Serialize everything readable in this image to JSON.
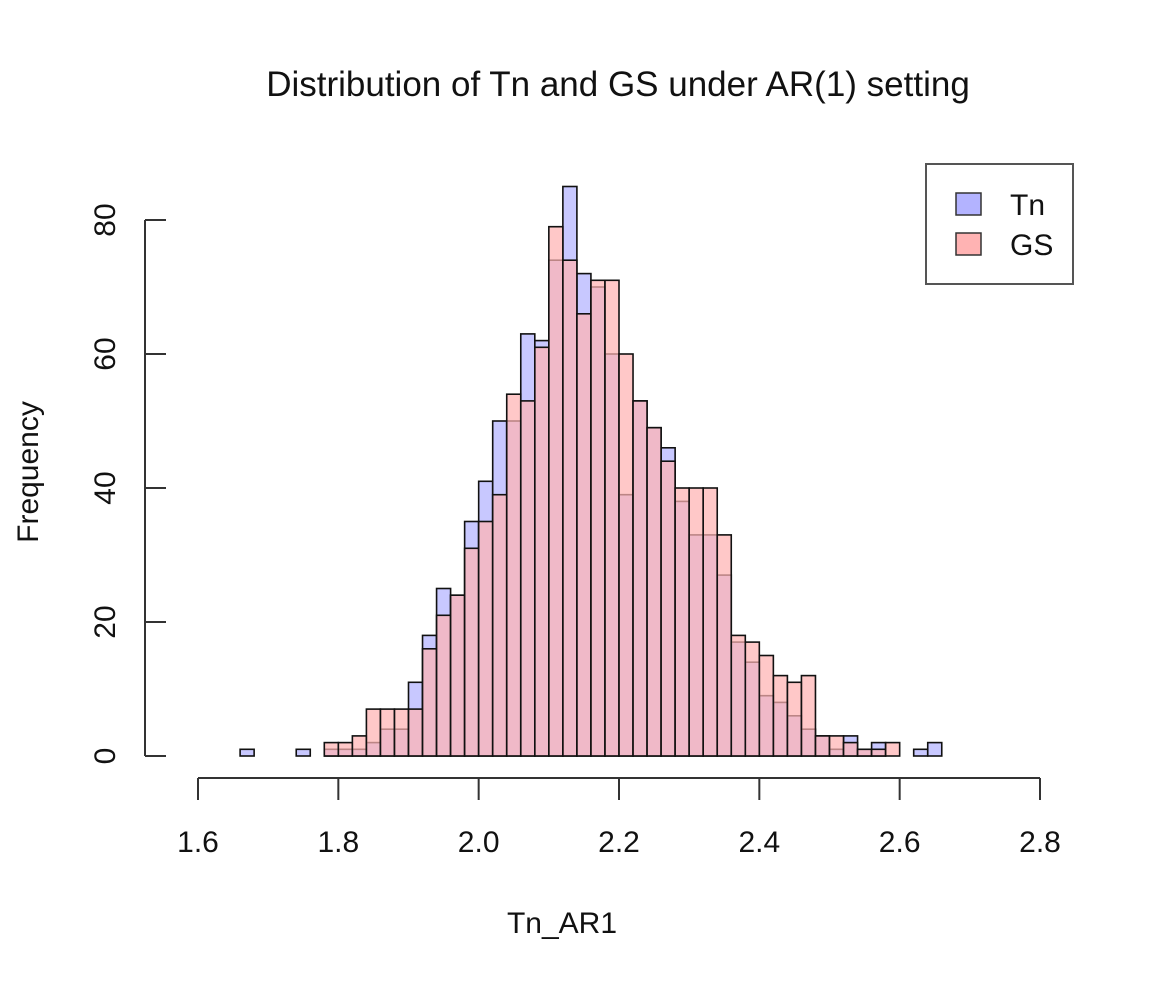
{
  "chart_data": {
    "type": "bar",
    "title": "Distribution of Tn and GS under AR(1) setting",
    "xlabel": "Tn_AR1",
    "ylabel": "Frequency",
    "xlim": [
      1.6,
      2.8
    ],
    "ylim": [
      0,
      85
    ],
    "x_ticks": [
      "1.6",
      "1.8",
      "2.0",
      "2.2",
      "2.4",
      "2.6",
      "2.8"
    ],
    "y_ticks": [
      "0",
      "20",
      "40",
      "60",
      "80"
    ],
    "bin_start": 1.66,
    "bin_width": 0.02,
    "legend_position": "top-right",
    "grid": false,
    "series": [
      {
        "name": "Tn",
        "color": "#b3b3ff",
        "values": [
          1,
          0,
          0,
          0,
          1,
          0,
          1,
          1,
          1,
          2,
          4,
          4,
          11,
          18,
          25,
          24,
          35,
          41,
          50,
          50,
          63,
          62,
          74,
          85,
          72,
          70,
          60,
          39,
          53,
          49,
          46,
          38,
          33,
          33,
          27,
          17,
          14,
          9,
          8,
          6,
          4,
          3,
          1,
          3,
          1,
          2,
          0,
          0,
          1,
          2
        ]
      },
      {
        "name": "GS",
        "color": "#ffb3b3",
        "values": [
          0,
          0,
          0,
          0,
          0,
          0,
          2,
          2,
          3,
          7,
          7,
          7,
          7,
          16,
          21,
          24,
          31,
          35,
          39,
          54,
          53,
          61,
          79,
          74,
          66,
          71,
          71,
          60,
          53,
          49,
          44,
          40,
          40,
          40,
          33,
          18,
          17,
          15,
          12,
          11,
          12,
          3,
          3,
          2,
          1,
          1,
          2,
          0,
          0,
          0
        ]
      }
    ]
  }
}
